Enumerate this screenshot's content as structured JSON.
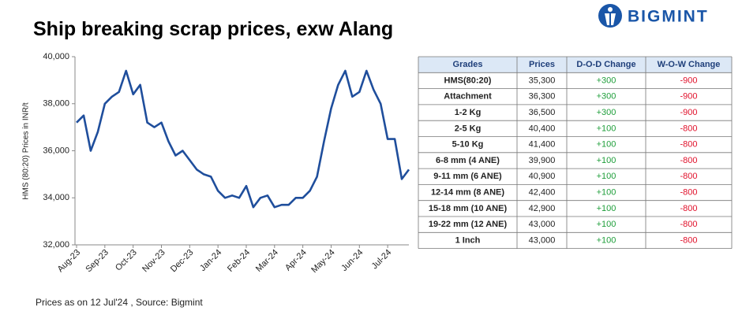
{
  "chart_data": {
    "type": "line",
    "title": "Ship breaking scrap prices, exw Alang",
    "y_label": "HMS (80:20) Prices in INR/t",
    "categories": [
      "Aug-23",
      null,
      null,
      null,
      "Sep-23",
      null,
      null,
      null,
      "Oct-23",
      null,
      null,
      null,
      "Nov-23",
      null,
      null,
      null,
      "Dec-23",
      null,
      null,
      null,
      "Jan-24",
      null,
      null,
      null,
      "Feb-24",
      null,
      null,
      null,
      "Mar-24",
      null,
      null,
      null,
      "Apr-24",
      null,
      null,
      null,
      "May-24",
      null,
      null,
      null,
      "Jun-24",
      null,
      null,
      null,
      "Jul-24",
      null,
      null,
      null
    ],
    "values": [
      37200,
      37500,
      36000,
      36800,
      38000,
      38300,
      38500,
      39400,
      38400,
      38800,
      37200,
      37000,
      37200,
      36400,
      35800,
      36000,
      35600,
      35200,
      35000,
      34900,
      34300,
      34000,
      34100,
      34000,
      34500,
      33600,
      34000,
      34100,
      33600,
      33700,
      33700,
      34000,
      34000,
      34300,
      34900,
      36400,
      37800,
      38800,
      39400,
      38300,
      38500,
      39400,
      38600,
      38000,
      36500,
      36500,
      34800,
      35200
    ],
    "color": "#1f4e9c",
    "ylim": [
      32000,
      40000
    ],
    "yticks": [
      {
        "value": 32000,
        "label": "32,000"
      },
      {
        "value": 34000,
        "label": "34,000"
      },
      {
        "value": 36000,
        "label": "36,000"
      },
      {
        "value": 38000,
        "label": "38,000"
      },
      {
        "value": 40000,
        "label": "40,000"
      }
    ]
  },
  "table": {
    "columns": [
      "Grades",
      "Prices",
      "D-O-D Change",
      "W-O-W Change"
    ],
    "rows": [
      [
        "HMS(80:20)",
        "35,300",
        "+300",
        "-900"
      ],
      [
        "Attachment",
        "36,300",
        "+300",
        "-900"
      ],
      [
        "1-2 Kg",
        "36,500",
        "+300",
        "-900"
      ],
      [
        "2-5 Kg",
        "40,400",
        "+100",
        "-800"
      ],
      [
        "5-10 Kg",
        "41,400",
        "+100",
        "-800"
      ],
      [
        "6-8 mm (4 ANE)",
        "39,900",
        "+100",
        "-800"
      ],
      [
        "9-11 mm (6 ANE)",
        "40,900",
        "+100",
        "-800"
      ],
      [
        "12-14 mm (8 ANE)",
        "42,400",
        "+100",
        "-800"
      ],
      [
        "15-18 mm (10 ANE)",
        "42,900",
        "+100",
        "-800"
      ],
      [
        "19-22 mm (12 ANE)",
        "43,000",
        "+100",
        "-800"
      ],
      [
        "1 Inch",
        "43,000",
        "+100",
        "-800"
      ]
    ]
  },
  "footnote": "Prices as on 12 Jul'24 , Source:  Bigmint",
  "logo": "BIGMINT"
}
